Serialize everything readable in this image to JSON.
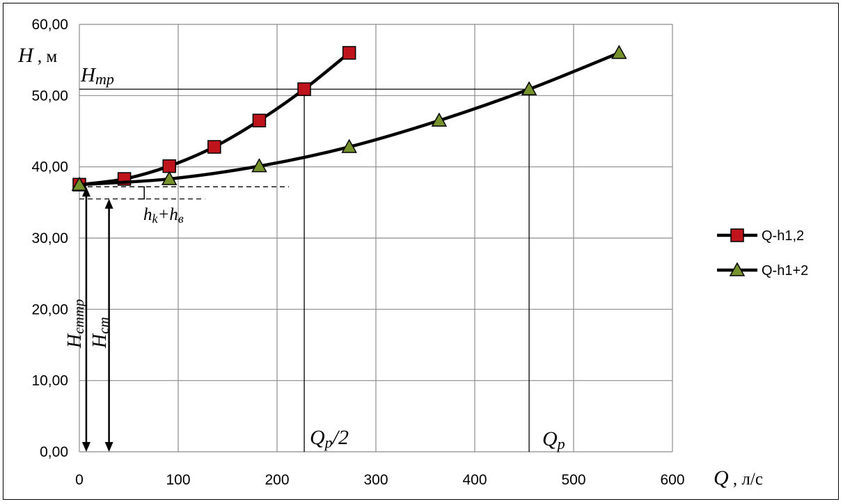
{
  "chart_data": {
    "type": "line",
    "title": "",
    "xlabel": {
      "symbol": "Q",
      "unit": " , л/с"
    },
    "ylabel": {
      "symbol": "H",
      "unit": " , м"
    },
    "xlim": [
      0,
      600
    ],
    "ylim": [
      0,
      60
    ],
    "grid": true,
    "legend_position": "right",
    "x_ticks": [
      0,
      100,
      200,
      300,
      400,
      500,
      600
    ],
    "x_tick_labels": [
      "0",
      "100",
      "200",
      "300",
      "400",
      "500",
      "600"
    ],
    "y_ticks": [
      0,
      10,
      20,
      30,
      40,
      50,
      60
    ],
    "y_tick_labels": [
      "0,00",
      "10,00",
      "20,00",
      "30,00",
      "40,00",
      "50,00",
      "60,00"
    ],
    "series": [
      {
        "name": "Q-h1,2",
        "marker": "square",
        "marker_color": "#c0141c",
        "line_color": "#000000",
        "x": [
          0,
          45.5,
          91,
          136.5,
          182,
          227.5,
          273
        ],
        "y": [
          37.5,
          38.3,
          40.1,
          42.8,
          46.5,
          50.9,
          56.0
        ]
      },
      {
        "name": "Q-h1+2",
        "marker": "triangle",
        "marker_color": "#76922c",
        "line_color": "#000000",
        "x": [
          0,
          91,
          182,
          273,
          364,
          455,
          546
        ],
        "y": [
          37.5,
          38.3,
          40.1,
          42.8,
          46.5,
          50.9,
          56.0
        ]
      }
    ],
    "annotations": {
      "h_tr": {
        "main": "H",
        "sub": "тр",
        "value": 50.9
      },
      "q_half": {
        "main": "Q",
        "sub": "p",
        "suffix": "/2",
        "value": 227.5
      },
      "q_p": {
        "main": "Q",
        "sub": "p",
        "value": 455
      },
      "h_st": {
        "main": "H",
        "sub": "ст",
        "value": 35.5,
        "x": 30
      },
      "h_sttr": {
        "main": "H",
        "sub": "cmmp",
        "value": 37.2,
        "x": 7
      },
      "losses": {
        "h1": "h",
        "s1": "k",
        "plus": "+",
        "h2": "h",
        "s2": "в"
      },
      "dashed_levels": [
        37.2,
        35.5
      ]
    }
  }
}
